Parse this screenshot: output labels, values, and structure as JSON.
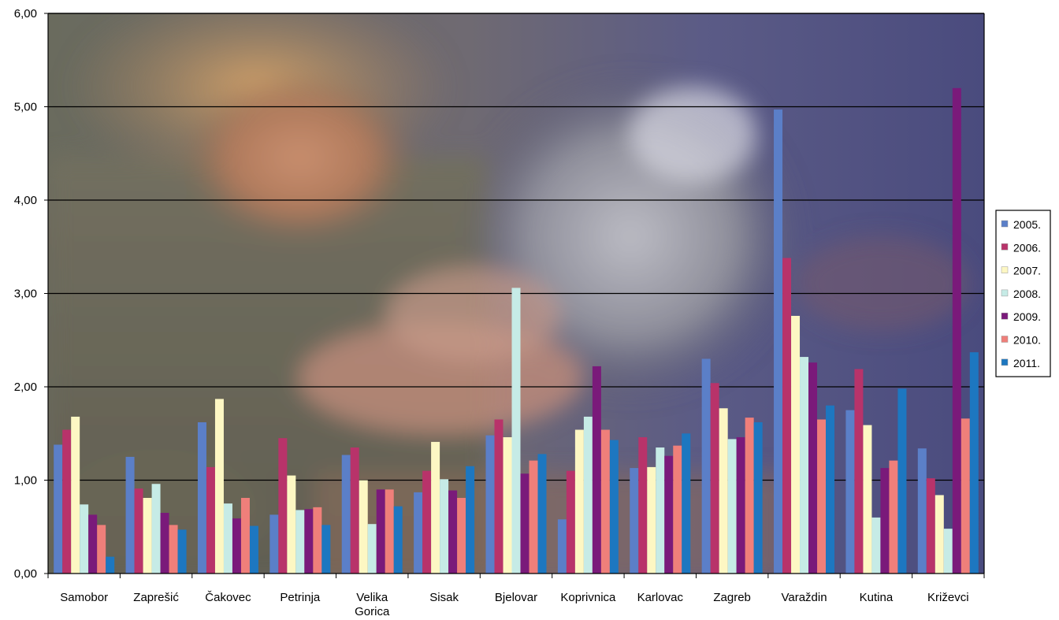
{
  "chart_data": {
    "type": "bar",
    "title": "",
    "xlabel": "",
    "ylabel": "",
    "ylim": [
      0,
      6
    ],
    "yticks": [
      "0,00",
      "1,00",
      "2,00",
      "3,00",
      "4,00",
      "5,00",
      "6,00"
    ],
    "grid": true,
    "legend_position": "right",
    "background": "photo of a person working at a machine (blurred)",
    "categories": [
      [
        "Samobor"
      ],
      [
        "Zaprešić"
      ],
      [
        "Čakovec"
      ],
      [
        "Petrinja"
      ],
      [
        "Velika",
        "Gorica"
      ],
      [
        "Sisak"
      ],
      [
        "Bjelovar"
      ],
      [
        "Koprivnica"
      ],
      [
        "Karlovac"
      ],
      [
        "Zagreb"
      ],
      [
        "Varaždin"
      ],
      [
        "Kutina"
      ],
      [
        "Križevci"
      ]
    ],
    "series": [
      {
        "name": "2005.",
        "color": "#5b7fc8",
        "values": [
          1.38,
          1.25,
          1.62,
          0.63,
          1.27,
          0.87,
          1.48,
          0.58,
          1.13,
          2.3,
          4.97,
          1.75,
          1.34
        ]
      },
      {
        "name": "2006.",
        "color": "#b8336a",
        "values": [
          1.54,
          0.91,
          1.14,
          1.45,
          1.35,
          1.1,
          1.65,
          1.1,
          1.46,
          2.04,
          3.38,
          2.19,
          1.02
        ]
      },
      {
        "name": "2007.",
        "color": "#fdf7c3",
        "values": [
          1.68,
          0.81,
          1.87,
          1.05,
          1.0,
          1.41,
          1.46,
          1.54,
          1.14,
          1.77,
          2.76,
          1.59,
          0.84
        ]
      },
      {
        "name": "2008.",
        "color": "#c6ebe6",
        "values": [
          0.74,
          0.96,
          0.75,
          0.68,
          0.53,
          1.01,
          3.06,
          1.68,
          1.35,
          1.44,
          2.32,
          0.6,
          0.48
        ]
      },
      {
        "name": "2009.",
        "color": "#7a1a7a",
        "values": [
          0.63,
          0.65,
          0.59,
          0.69,
          0.9,
          0.89,
          1.07,
          2.22,
          1.26,
          1.46,
          2.26,
          1.13,
          5.2
        ]
      },
      {
        "name": "2010.",
        "color": "#ef7f7a",
        "values": [
          0.52,
          0.52,
          0.81,
          0.71,
          0.9,
          0.81,
          1.21,
          1.54,
          1.37,
          1.67,
          1.65,
          1.21,
          1.66
        ]
      },
      {
        "name": "2011.",
        "color": "#1d77c0",
        "values": [
          0.18,
          0.47,
          0.51,
          0.52,
          0.72,
          1.15,
          1.28,
          1.43,
          1.5,
          1.62,
          1.8,
          1.98,
          2.37
        ]
      }
    ]
  }
}
